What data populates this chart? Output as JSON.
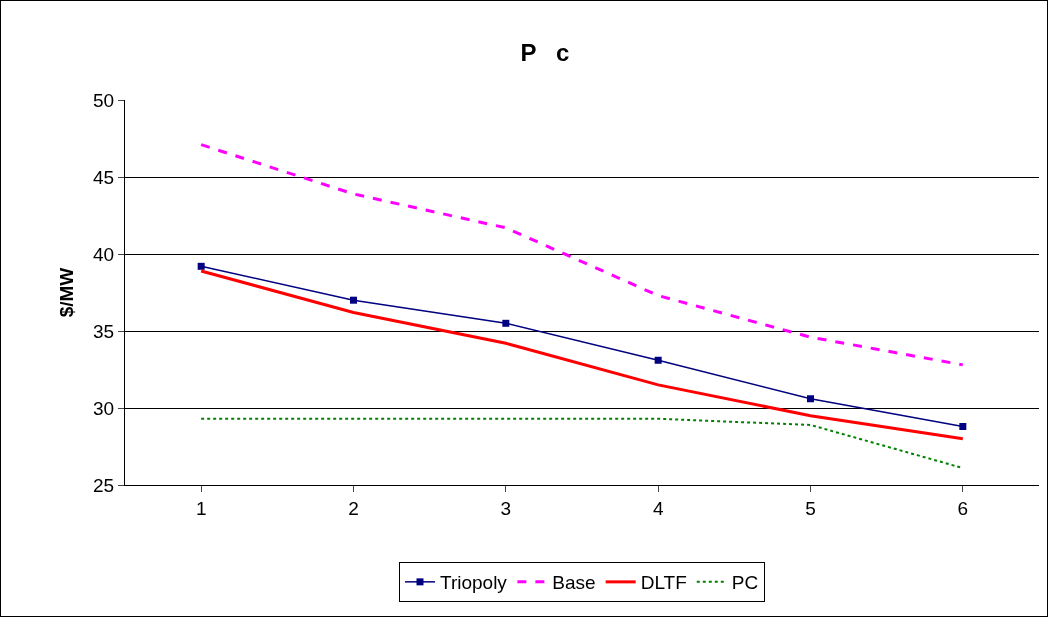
{
  "chart_data": {
    "type": "line",
    "title": "P   c",
    "ylabel": "$/MW",
    "x": [
      1,
      2,
      3,
      4,
      5,
      6
    ],
    "xlim": [
      0.5,
      6.5
    ],
    "xticks": [
      1,
      2,
      3,
      4,
      5,
      6
    ],
    "ylim": [
      25,
      50
    ],
    "yticks": [
      25,
      30,
      35,
      40,
      45,
      50
    ],
    "grid": "y",
    "legend": "bottom",
    "series": [
      {
        "name": "Triopoly",
        "color": "#000080",
        "marker": "square",
        "line_style": "solid",
        "values": [
          39.2,
          37.0,
          35.5,
          33.1,
          30.6,
          28.8
        ]
      },
      {
        "name": "Base",
        "color": "#ff00ff",
        "marker": "none",
        "line_style": "dashed",
        "values": [
          47.1,
          43.9,
          41.7,
          37.3,
          34.6,
          32.8
        ]
      },
      {
        "name": "DLTF",
        "color": "#ff0000",
        "marker": "none",
        "line_style": "solid",
        "values": [
          38.9,
          36.2,
          34.2,
          31.5,
          29.5,
          28.0
        ]
      },
      {
        "name": "PC",
        "color": "#008000",
        "marker": "none",
        "line_style": "dotted",
        "values": [
          29.3,
          29.3,
          29.3,
          29.3,
          28.9,
          26.1
        ]
      }
    ]
  }
}
